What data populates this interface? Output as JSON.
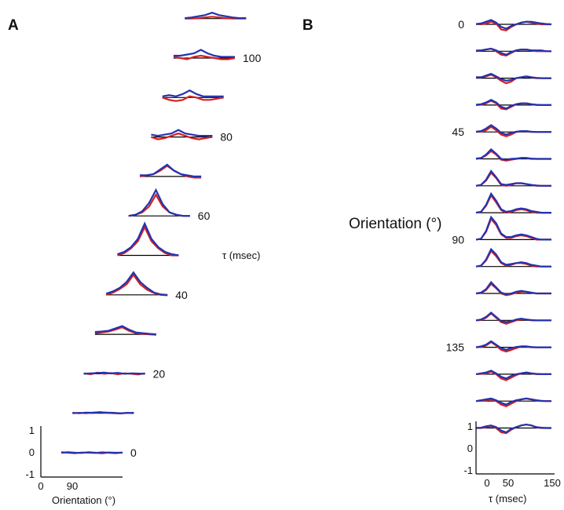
{
  "panels": {
    "a": {
      "label": "A"
    },
    "b": {
      "label": "B"
    }
  },
  "chart_data": [
    {
      "panel": "A",
      "type": "line",
      "title": "",
      "xlabel": "Orientation (°)",
      "ylabel": "",
      "stack_label": "τ (msec)",
      "ylim": [
        -1,
        1
      ],
      "x_ticks": [
        "0",
        "90"
      ],
      "y_ticks": [
        "1",
        "0",
        "-1"
      ],
      "delay_labels": [
        {
          "value": "0",
          "slice": 0
        },
        {
          "value": "20",
          "slice": 2
        },
        {
          "value": "40",
          "slice": 4
        },
        {
          "value": "60",
          "slice": 6
        },
        {
          "value": "80",
          "slice": 8
        },
        {
          "value": "100",
          "slice": 10
        }
      ],
      "series_colors": [
        "#d62020",
        "#2233b0"
      ],
      "x": [
        0,
        20,
        40,
        60,
        80,
        100,
        120,
        140,
        160,
        180
      ],
      "slices": [
        {
          "delay": 0,
          "red": [
            0.02,
            0.0,
            -0.02,
            0.01,
            0.0,
            -0.01,
            0.02,
            0.0,
            -0.02,
            0.01
          ],
          "blue": [
            0.0,
            0.02,
            0.0,
            -0.01,
            0.02,
            0.0,
            -0.02,
            0.01,
            0.0,
            0.0
          ]
        },
        {
          "delay": 10,
          "red": [
            0.0,
            0.02,
            0.0,
            0.03,
            0.05,
            0.02,
            0.0,
            -0.01,
            0.02,
            0.0
          ],
          "blue": [
            0.02,
            0.0,
            0.03,
            0.02,
            0.04,
            0.03,
            0.02,
            0.0,
            0.01,
            0.02
          ]
        },
        {
          "delay": 20,
          "red": [
            0.02,
            -0.02,
            0.05,
            0.0,
            0.03,
            -0.02,
            0.02,
            0.0,
            -0.03,
            0.02
          ],
          "blue": [
            0.0,
            0.02,
            0.03,
            0.05,
            0.02,
            0.04,
            0.0,
            0.02,
            0.01,
            0.0
          ]
        },
        {
          "delay": 30,
          "red": [
            0.05,
            0.08,
            0.12,
            0.2,
            0.3,
            0.15,
            0.05,
            0.02,
            0.0,
            -0.02
          ],
          "blue": [
            0.1,
            0.12,
            0.15,
            0.25,
            0.35,
            0.2,
            0.08,
            0.05,
            0.02,
            0.0
          ]
        },
        {
          "delay": 40,
          "red": [
            0.0,
            0.1,
            0.25,
            0.45,
            0.85,
            0.45,
            0.22,
            0.08,
            0.0,
            -0.02
          ],
          "blue": [
            0.05,
            0.15,
            0.3,
            0.55,
            0.95,
            0.55,
            0.3,
            0.1,
            0.02,
            0.0
          ]
        },
        {
          "delay": 50,
          "red": [
            0.0,
            0.1,
            0.3,
            0.6,
            1.2,
            0.6,
            0.3,
            0.1,
            0.0,
            0.0
          ],
          "blue": [
            0.05,
            0.15,
            0.35,
            0.7,
            1.35,
            0.7,
            0.35,
            0.15,
            0.05,
            0.0
          ]
        },
        {
          "delay": 60,
          "red": [
            0.0,
            0.05,
            0.15,
            0.4,
            0.9,
            0.4,
            0.15,
            0.05,
            0.0,
            0.0
          ],
          "blue": [
            0.0,
            0.05,
            0.2,
            0.55,
            1.1,
            0.5,
            0.15,
            0.05,
            0.0,
            0.0
          ]
        },
        {
          "delay": 70,
          "red": [
            0.0,
            0.05,
            0.1,
            0.25,
            0.45,
            0.25,
            0.1,
            0.0,
            -0.05,
            -0.05
          ],
          "blue": [
            0.05,
            0.05,
            0.1,
            0.3,
            0.5,
            0.25,
            0.1,
            0.05,
            0.0,
            0.0
          ]
        },
        {
          "delay": 80,
          "red": [
            0.0,
            -0.1,
            -0.05,
            0.05,
            0.15,
            0.05,
            -0.05,
            -0.1,
            -0.05,
            0.0
          ],
          "blue": [
            0.1,
            0.05,
            0.1,
            0.15,
            0.3,
            0.15,
            0.1,
            0.05,
            0.05,
            0.05
          ]
        },
        {
          "delay": 90,
          "red": [
            0.0,
            -0.1,
            -0.15,
            -0.1,
            0.05,
            0.0,
            -0.1,
            -0.1,
            -0.05,
            0.0
          ],
          "blue": [
            0.05,
            0.1,
            0.05,
            0.15,
            0.3,
            0.15,
            0.05,
            0.05,
            0.05,
            0.05
          ]
        },
        {
          "delay": 100,
          "red": [
            0.05,
            0.0,
            -0.05,
            0.05,
            0.1,
            0.05,
            0.0,
            -0.05,
            -0.05,
            0.0
          ],
          "blue": [
            0.1,
            0.1,
            0.15,
            0.2,
            0.35,
            0.2,
            0.1,
            0.05,
            0.05,
            0.05
          ]
        },
        {
          "delay": 110,
          "red": [
            0.0,
            0.0,
            0.02,
            0.05,
            0.08,
            0.05,
            0.02,
            0.0,
            0.0,
            0.0
          ],
          "blue": [
            0.02,
            0.05,
            0.1,
            0.15,
            0.25,
            0.15,
            0.1,
            0.05,
            0.02,
            0.02
          ]
        }
      ]
    },
    {
      "panel": "B",
      "type": "line",
      "title": "",
      "xlabel": "τ (msec)",
      "ylabel": "Orientation (°)",
      "ylim": [
        -1,
        1
      ],
      "x_ticks": [
        "0",
        "50",
        "150"
      ],
      "y_ticks": [
        "1",
        "0",
        "-1"
      ],
      "orientation_labels": [
        {
          "value": "0",
          "row": 0
        },
        {
          "value": "45",
          "row": 4
        },
        {
          "value": "90",
          "row": 8
        },
        {
          "value": "135",
          "row": 12
        }
      ],
      "series_colors": [
        "#d62020",
        "#2233b0"
      ],
      "tau": [
        0,
        10,
        20,
        30,
        40,
        50,
        60,
        70,
        80,
        90,
        100,
        110,
        120,
        130,
        140,
        150
      ],
      "rows": [
        {
          "orientation": 0,
          "red": [
            0.02,
            0.0,
            0.05,
            0.15,
            0.05,
            -0.3,
            -0.35,
            -0.15,
            0.0,
            0.1,
            0.15,
            0.1,
            0.05,
            0.0,
            0.0,
            0.0
          ],
          "blue": [
            0.02,
            0.05,
            0.15,
            0.25,
            0.1,
            -0.15,
            -0.25,
            -0.1,
            0.0,
            0.1,
            0.15,
            0.15,
            0.1,
            0.05,
            0.02,
            0.0
          ]
        },
        {
          "orientation": 11.25,
          "red": [
            0.05,
            0.05,
            0.1,
            0.15,
            0.0,
            -0.2,
            -0.25,
            -0.1,
            0.05,
            0.1,
            0.1,
            0.05,
            0.0,
            0.0,
            0.0,
            0.0
          ],
          "blue": [
            0.0,
            0.05,
            0.1,
            0.15,
            0.05,
            -0.1,
            -0.2,
            -0.05,
            0.05,
            0.1,
            0.1,
            0.05,
            0.05,
            0.05,
            0.0,
            0.0
          ]
        },
        {
          "orientation": 22.5,
          "red": [
            0.05,
            0.05,
            0.1,
            0.2,
            0.05,
            -0.15,
            -0.3,
            -0.2,
            0.0,
            0.05,
            0.1,
            0.05,
            0.0,
            0.0,
            0.0,
            0.0
          ],
          "blue": [
            0.05,
            0.05,
            0.15,
            0.25,
            0.1,
            -0.05,
            -0.15,
            -0.1,
            0.0,
            0.05,
            0.1,
            0.05,
            0.02,
            0.0,
            0.0,
            0.0
          ]
        },
        {
          "orientation": 33.75,
          "red": [
            0.0,
            0.02,
            0.1,
            0.25,
            0.1,
            -0.2,
            -0.25,
            -0.1,
            0.05,
            0.1,
            0.1,
            0.05,
            0.0,
            0.0,
            0.0,
            0.0
          ],
          "blue": [
            0.02,
            0.05,
            0.15,
            0.3,
            0.15,
            -0.1,
            -0.2,
            -0.05,
            0.05,
            0.1,
            0.1,
            0.05,
            0.02,
            0.0,
            0.0,
            0.0
          ]
        },
        {
          "orientation": 45,
          "red": [
            0.0,
            0.02,
            0.1,
            0.3,
            0.1,
            -0.15,
            -0.25,
            -0.15,
            0.0,
            0.05,
            0.05,
            0.0,
            0.0,
            0.0,
            0.0,
            0.0
          ],
          "blue": [
            0.02,
            0.05,
            0.2,
            0.4,
            0.2,
            -0.05,
            -0.15,
            -0.05,
            0.02,
            0.05,
            0.05,
            0.02,
            0.0,
            0.0,
            0.0,
            0.0
          ]
        },
        {
          "orientation": 56.25,
          "red": [
            0.0,
            0.05,
            0.2,
            0.45,
            0.25,
            -0.05,
            -0.1,
            -0.05,
            0.0,
            0.05,
            0.05,
            0.0,
            0.0,
            0.0,
            0.0,
            0.0
          ],
          "blue": [
            0.02,
            0.05,
            0.25,
            0.55,
            0.3,
            0.0,
            -0.05,
            0.0,
            0.02,
            0.05,
            0.05,
            0.02,
            0.0,
            0.0,
            0.0,
            0.0
          ]
        },
        {
          "orientation": 67.5,
          "red": [
            0.0,
            0.05,
            0.3,
            0.75,
            0.45,
            0.05,
            0.0,
            0.05,
            0.15,
            0.15,
            0.1,
            0.05,
            0.0,
            0.0,
            0.0,
            0.0
          ],
          "blue": [
            0.0,
            0.05,
            0.35,
            0.85,
            0.5,
            0.1,
            0.05,
            0.1,
            0.15,
            0.15,
            0.1,
            0.05,
            0.02,
            0.0,
            0.0,
            0.0
          ]
        },
        {
          "orientation": 78.75,
          "red": [
            0.0,
            0.05,
            0.4,
            1.0,
            0.6,
            0.15,
            0.0,
            0.05,
            0.15,
            0.2,
            0.15,
            0.05,
            0.0,
            0.0,
            0.0,
            0.0
          ],
          "blue": [
            0.0,
            0.05,
            0.45,
            1.1,
            0.7,
            0.2,
            0.05,
            0.1,
            0.2,
            0.25,
            0.2,
            0.1,
            0.05,
            0.0,
            0.0,
            0.0
          ]
        },
        {
          "orientation": 90,
          "red": [
            0.0,
            0.05,
            0.45,
            1.2,
            0.85,
            0.3,
            0.1,
            0.1,
            0.2,
            0.25,
            0.2,
            0.1,
            0.0,
            0.0,
            0.0,
            0.0
          ],
          "blue": [
            0.0,
            0.05,
            0.5,
            1.3,
            0.95,
            0.35,
            0.15,
            0.15,
            0.25,
            0.3,
            0.25,
            0.15,
            0.05,
            0.0,
            0.0,
            0.0
          ]
        },
        {
          "orientation": 101.25,
          "red": [
            0.0,
            0.05,
            0.35,
            0.9,
            0.6,
            0.2,
            0.05,
            0.1,
            0.2,
            0.2,
            0.15,
            0.05,
            0.0,
            0.0,
            0.0,
            0.0
          ],
          "blue": [
            0.0,
            0.05,
            0.4,
            1.0,
            0.7,
            0.25,
            0.1,
            0.15,
            0.2,
            0.25,
            0.2,
            0.1,
            0.05,
            0.0,
            0.0,
            0.0
          ]
        },
        {
          "orientation": 112.5,
          "red": [
            0.0,
            0.02,
            0.2,
            0.55,
            0.3,
            0.0,
            -0.1,
            -0.05,
            0.05,
            0.1,
            0.1,
            0.05,
            0.0,
            0.0,
            0.0,
            0.0
          ],
          "blue": [
            0.0,
            0.05,
            0.25,
            0.65,
            0.35,
            0.05,
            -0.05,
            0.0,
            0.1,
            0.15,
            0.1,
            0.05,
            0.0,
            0.0,
            0.0,
            0.0
          ]
        },
        {
          "orientation": 123.75,
          "red": [
            0.0,
            0.02,
            0.15,
            0.4,
            0.15,
            -0.1,
            -0.2,
            -0.1,
            0.0,
            0.05,
            0.05,
            0.0,
            0.0,
            0.0,
            0.0,
            0.0
          ],
          "blue": [
            0.0,
            0.05,
            0.2,
            0.45,
            0.2,
            -0.05,
            -0.1,
            -0.05,
            0.05,
            0.1,
            0.05,
            0.02,
            0.0,
            0.0,
            0.0,
            0.0
          ]
        },
        {
          "orientation": 135,
          "red": [
            0.0,
            0.02,
            0.1,
            0.3,
            0.1,
            -0.15,
            -0.25,
            -0.15,
            -0.05,
            0.05,
            0.05,
            0.0,
            0.0,
            0.0,
            0.0,
            0.0
          ],
          "blue": [
            0.0,
            0.05,
            0.15,
            0.35,
            0.15,
            -0.05,
            -0.15,
            -0.05,
            0.02,
            0.05,
            0.05,
            0.02,
            0.0,
            0.0,
            0.0,
            0.0
          ]
        },
        {
          "orientation": 146.25,
          "red": [
            0.0,
            0.02,
            0.05,
            0.15,
            0.0,
            -0.25,
            -0.35,
            -0.2,
            -0.05,
            0.05,
            0.1,
            0.05,
            0.0,
            0.0,
            0.0,
            0.0
          ],
          "blue": [
            0.0,
            0.05,
            0.1,
            0.2,
            0.05,
            -0.15,
            -0.25,
            -0.1,
            0.0,
            0.05,
            0.1,
            0.05,
            0.02,
            0.0,
            0.0,
            0.0
          ]
        },
        {
          "orientation": 157.5,
          "red": [
            0.0,
            0.02,
            0.05,
            0.1,
            0.0,
            -0.2,
            -0.3,
            -0.15,
            0.0,
            0.1,
            0.15,
            0.1,
            0.05,
            0.0,
            0.0,
            0.0
          ],
          "blue": [
            0.0,
            0.05,
            0.1,
            0.15,
            0.05,
            -0.1,
            -0.2,
            -0.05,
            0.05,
            0.1,
            0.15,
            0.1,
            0.05,
            0.02,
            0.0,
            0.0
          ]
        },
        {
          "orientation": 168.75,
          "red": [
            0.0,
            0.0,
            0.05,
            0.1,
            0.0,
            -0.25,
            -0.3,
            -0.1,
            0.05,
            0.15,
            0.2,
            0.15,
            0.05,
            0.0,
            0.0,
            0.0
          ],
          "blue": [
            0.0,
            0.02,
            0.1,
            0.15,
            0.05,
            -0.15,
            -0.25,
            -0.05,
            0.05,
            0.15,
            0.2,
            0.15,
            0.05,
            0.02,
            0.0,
            0.0
          ]
        }
      ]
    }
  ]
}
